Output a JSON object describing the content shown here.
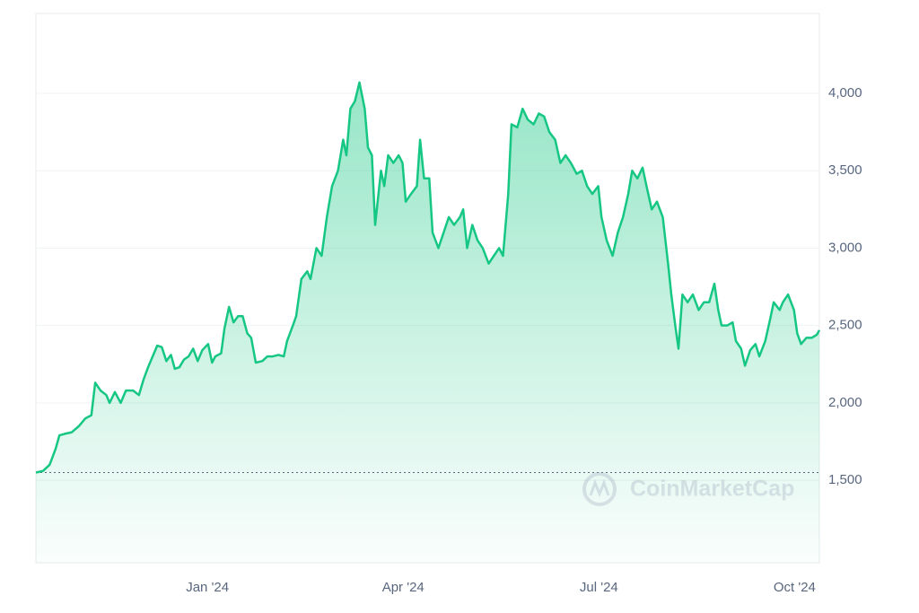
{
  "chart_data": {
    "type": "area",
    "watermark": "CoinMarketCap",
    "color": "#16c784",
    "grid": true,
    "x": [
      -2.63,
      -2.52,
      -2.42,
      -2.33,
      -2.27,
      -2.19,
      -2.08,
      -1.97,
      -1.87,
      -1.78,
      -1.72,
      -1.64,
      -1.55,
      -1.5,
      -1.42,
      -1.33,
      -1.25,
      -1.14,
      -1.05,
      -0.98,
      -0.91,
      -0.84,
      -0.77,
      -0.7,
      -0.63,
      -0.56,
      -0.5,
      -0.43,
      -0.36,
      -0.29,
      -0.22,
      -0.15,
      -0.08,
      0.01,
      0.07,
      0.12,
      0.21,
      0.26,
      0.33,
      0.4,
      0.47,
      0.54,
      0.61,
      0.67,
      0.74,
      0.84,
      0.92,
      1.0,
      1.09,
      1.17,
      1.22,
      1.31,
      1.36,
      1.44,
      1.53,
      1.58,
      1.67,
      1.75,
      1.83,
      1.91,
      2.0,
      2.08,
      2.13,
      2.19,
      2.26,
      2.33,
      2.41,
      2.46,
      2.52,
      2.57,
      2.66,
      2.71,
      2.77,
      2.85,
      2.93,
      2.99,
      3.04,
      3.12,
      3.21,
      3.26,
      3.32,
      3.4,
      3.45,
      3.54,
      3.62,
      3.7,
      3.78,
      3.87,
      3.92,
      3.98,
      4.06,
      4.14,
      4.22,
      4.31,
      4.39,
      4.47,
      4.53,
      4.61,
      4.66,
      4.75,
      4.83,
      4.91,
      5.0,
      5.08,
      5.16,
      5.24,
      5.33,
      5.41,
      5.49,
      5.57,
      5.66,
      5.74,
      5.82,
      5.9,
      5.99,
      6.04,
      6.12,
      6.21,
      6.29,
      6.37,
      6.45,
      6.51,
      6.59,
      6.67,
      6.73,
      6.81,
      6.89,
      6.98,
      7.06,
      7.11,
      7.17,
      7.22,
      7.28,
      7.36,
      7.44,
      7.53,
      7.61,
      7.69,
      7.77,
      7.83,
      7.88,
      7.97,
      8.05,
      8.1,
      8.18,
      8.24,
      8.32,
      8.4,
      8.46,
      8.55,
      8.63,
      8.68,
      8.77,
      8.82,
      8.9,
      8.99,
      9.04,
      9.1,
      9.18,
      9.26,
      9.34,
      9.38
    ],
    "values": [
      1550,
      1560,
      1600,
      1700,
      1790,
      1800,
      1810,
      1850,
      1900,
      1920,
      2130,
      2080,
      2050,
      2000,
      2070,
      2000,
      2080,
      2080,
      2050,
      2150,
      2230,
      2300,
      2370,
      2360,
      2270,
      2310,
      2220,
      2230,
      2280,
      2300,
      2350,
      2270,
      2340,
      2380,
      2260,
      2300,
      2320,
      2480,
      2620,
      2520,
      2560,
      2560,
      2450,
      2420,
      2260,
      2270,
      2300,
      2300,
      2310,
      2300,
      2400,
      2500,
      2560,
      2800,
      2850,
      2800,
      3000,
      2950,
      3200,
      3400,
      3500,
      3700,
      3600,
      3900,
      3950,
      4070,
      3900,
      3650,
      3600,
      3150,
      3500,
      3400,
      3600,
      3550,
      3600,
      3550,
      3300,
      3350,
      3400,
      3700,
      3450,
      3450,
      3100,
      3000,
      3100,
      3200,
      3150,
      3200,
      3250,
      3000,
      3150,
      3050,
      3000,
      2900,
      2950,
      3000,
      2950,
      3350,
      3800,
      3780,
      3900,
      3830,
      3800,
      3870,
      3850,
      3750,
      3700,
      3550,
      3600,
      3550,
      3480,
      3500,
      3400,
      3350,
      3400,
      3200,
      3050,
      2950,
      3100,
      3200,
      3350,
      3500,
      3450,
      3520,
      3400,
      3250,
      3300,
      3200,
      2900,
      2700,
      2500,
      2350,
      2700,
      2650,
      2700,
      2600,
      2650,
      2650,
      2770,
      2600,
      2500,
      2500,
      2520,
      2400,
      2350,
      2240,
      2340,
      2380,
      2300,
      2400,
      2550,
      2650,
      2600,
      2650,
      2700,
      2600,
      2450,
      2380,
      2420,
      2420,
      2440,
      2470
    ],
    "xlim": [
      -2.63,
      9.38
    ],
    "xticks": [
      {
        "value": 0,
        "label": "Jan '24"
      },
      {
        "value": 3,
        "label": "Apr '24"
      },
      {
        "value": 6,
        "label": "Jul '24"
      },
      {
        "value": 9,
        "label": "Oct '24"
      }
    ],
    "ylim": [
      967,
      4516
    ],
    "yticks": [
      {
        "value": 1500,
        "label": "1,500"
      },
      {
        "value": 2000,
        "label": "2,000"
      },
      {
        "value": 2500,
        "label": "2,500"
      },
      {
        "value": 3000,
        "label": "3,000"
      },
      {
        "value": 3500,
        "label": "3,500"
      },
      {
        "value": 4000,
        "label": "4,000"
      }
    ]
  }
}
